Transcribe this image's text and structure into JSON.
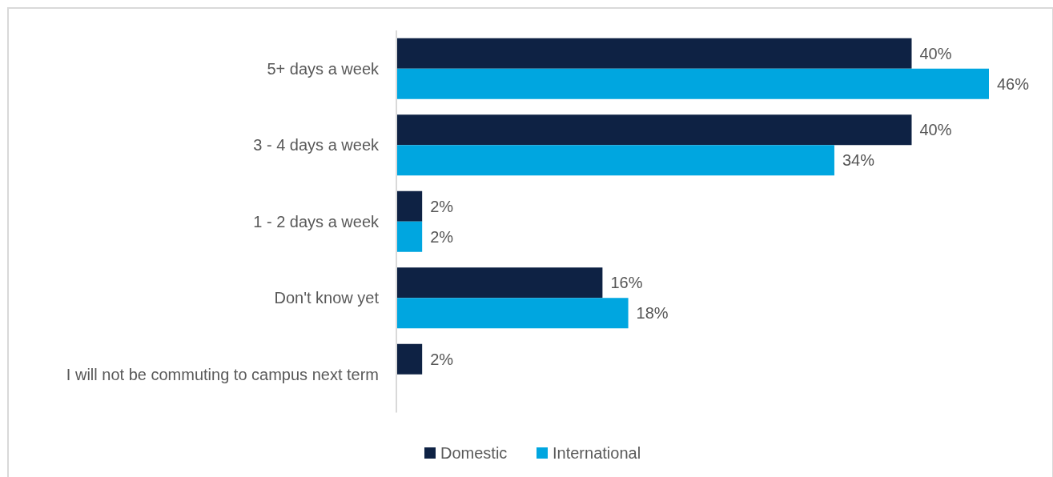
{
  "chart_data": {
    "type": "bar",
    "orientation": "horizontal",
    "categories": [
      "5+ days a week",
      "3 - 4 days a week",
      "1 - 2 days a week",
      "Don't know yet",
      "I will not be commuting to campus next term"
    ],
    "series": [
      {
        "name": "Domestic",
        "color": "#0e2244",
        "values": [
          40,
          40,
          2,
          16,
          2
        ],
        "value_labels": [
          "40%",
          "40%",
          "2%",
          "16%",
          "2%"
        ]
      },
      {
        "name": "International",
        "color": "#00a6e0",
        "values": [
          46,
          34,
          2,
          18,
          null
        ],
        "value_labels": [
          "46%",
          "34%",
          "2%",
          "18%",
          null
        ]
      }
    ],
    "legend": "bottom"
  }
}
